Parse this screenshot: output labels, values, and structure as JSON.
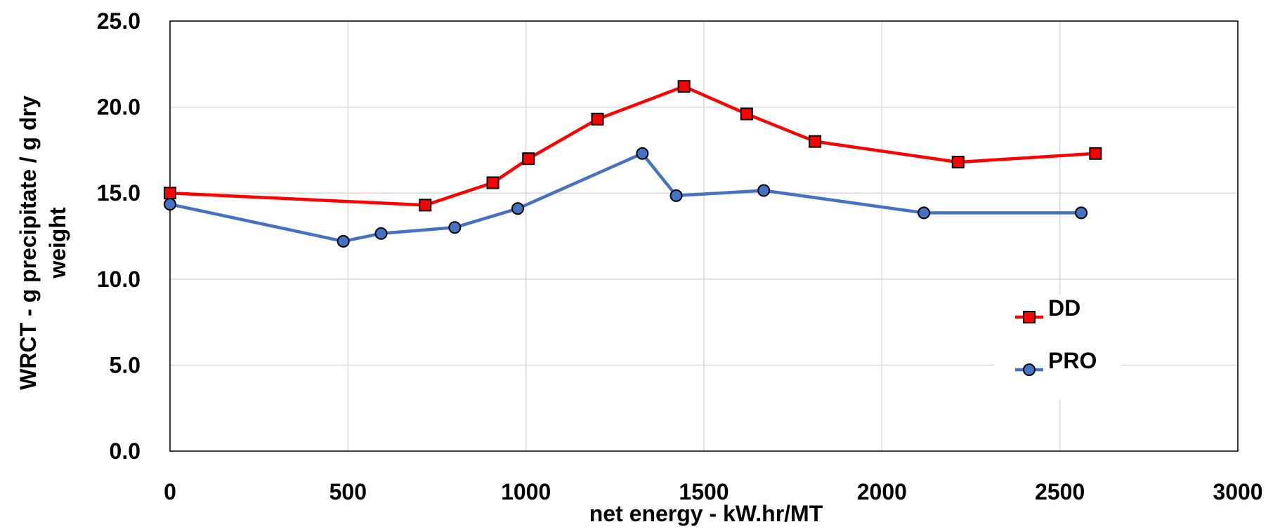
{
  "chart_data": {
    "type": "line",
    "title": "",
    "xlabel": "net energy - kW.hr/MT",
    "ylabel_lines": [
      "WRCT - g precipitate / g dry",
      "weight"
    ],
    "xlim": [
      0,
      3000
    ],
    "ylim": [
      0,
      25
    ],
    "x_ticks": [
      0,
      500,
      1000,
      1500,
      2000,
      2500,
      3000
    ],
    "y_ticks": [
      0,
      5,
      10,
      15,
      20,
      25
    ],
    "x_tick_labels": [
      "0",
      "500",
      "1000",
      "1500",
      "2000",
      "2500",
      "3000"
    ],
    "y_tick_labels": [
      "0.0",
      "5.0",
      "10.0",
      "15.0",
      "20.0",
      "25.0"
    ],
    "grid": true,
    "legend_position": "right",
    "series": [
      {
        "name": "DD",
        "color": "#ff0000",
        "marker": "square",
        "x": [
          0,
          717,
          907,
          1007,
          1201,
          1444,
          1620,
          1812,
          2214,
          2600
        ],
        "y": [
          15.0,
          14.3,
          15.6,
          17.0,
          19.3,
          21.2,
          19.6,
          18.0,
          16.8,
          17.3
        ]
      },
      {
        "name": "PRO",
        "color": "#4472c4",
        "marker": "circle",
        "x": [
          0,
          487,
          593,
          800,
          977,
          1327,
          1422,
          1668,
          2118,
          2560
        ],
        "y": [
          14.35,
          12.2,
          12.65,
          13.0,
          14.1,
          17.3,
          14.85,
          15.15,
          13.85,
          13.85
        ]
      }
    ]
  }
}
